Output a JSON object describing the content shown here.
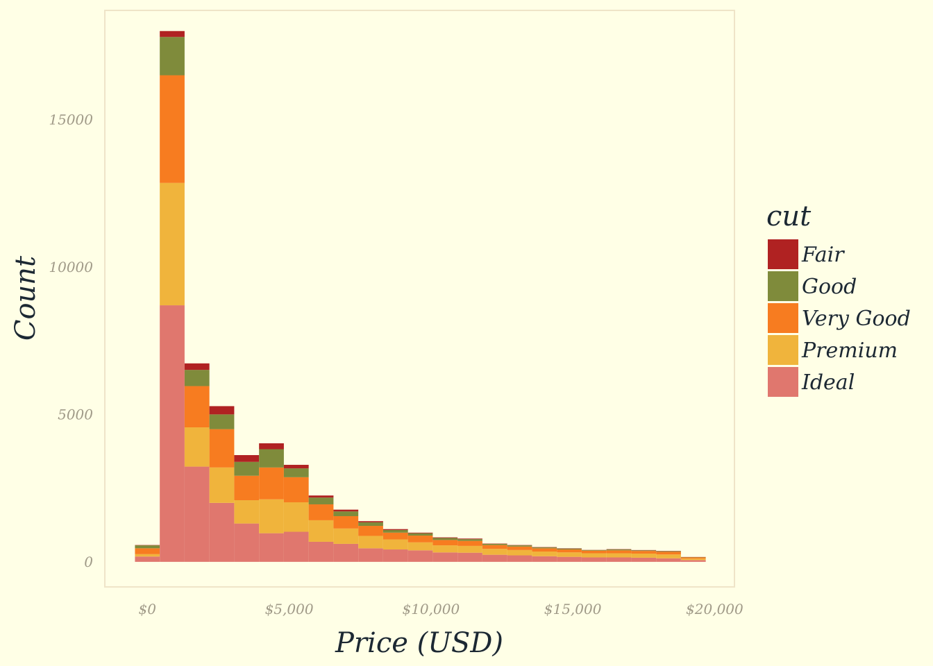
{
  "chart_data": {
    "type": "bar",
    "stacked": true,
    "xlabel": "Price (USD)",
    "ylabel": "Count",
    "xlim": [
      -1500,
      20700
    ],
    "ylim": [
      -850,
      18700
    ],
    "x_ticks": [
      {
        "value": 0,
        "label": "$0"
      },
      {
        "value": 5000,
        "label": "$5,000"
      },
      {
        "value": 10000,
        "label": "$10,000"
      },
      {
        "value": 15000,
        "label": "$15,000"
      },
      {
        "value": 20000,
        "label": "$20,000"
      }
    ],
    "y_ticks": [
      {
        "value": 0,
        "label": "0"
      },
      {
        "value": 5000,
        "label": "5000"
      },
      {
        "value": 10000,
        "label": "10000"
      },
      {
        "value": 15000,
        "label": "15000"
      }
    ],
    "grid": false,
    "legend": {
      "title": "cut",
      "position": "right"
    },
    "bin_edges": [
      -437.5,
      437.5,
      1312.5,
      2187.5,
      3062.5,
      3937.5,
      4812.5,
      5687.5,
      6562.5,
      7437.5,
      8312.5,
      9187.5,
      10062.5,
      10937.5,
      11812.5,
      12687.5,
      13562.5,
      14437.5,
      15312.5,
      16187.5,
      17062.5,
      17937.5,
      18812.5,
      19687.5
    ],
    "series": [
      {
        "name": "Ideal",
        "color": "#E0776E",
        "values": [
          180,
          8700,
          3230,
          2000,
          1300,
          970,
          1020,
          680,
          610,
          460,
          420,
          390,
          320,
          310,
          240,
          220,
          190,
          170,
          150,
          150,
          140,
          120,
          60
        ]
      },
      {
        "name": "Premium",
        "color": "#F0B43C",
        "values": [
          80,
          4150,
          1330,
          1200,
          790,
          1150,
          1000,
          730,
          520,
          420,
          340,
          270,
          240,
          230,
          200,
          180,
          160,
          150,
          140,
          140,
          140,
          130,
          50
        ]
      },
      {
        "name": "Very Good",
        "color": "#F77C20",
        "values": [
          200,
          3650,
          1400,
          1300,
          830,
          1080,
          850,
          540,
          420,
          340,
          230,
          230,
          180,
          170,
          130,
          120,
          110,
          100,
          90,
          100,
          90,
          90,
          40
        ]
      },
      {
        "name": "Good",
        "color": "#7F8B3B",
        "values": [
          100,
          1300,
          550,
          500,
          470,
          620,
          300,
          230,
          160,
          120,
          90,
          80,
          70,
          60,
          40,
          40,
          30,
          30,
          20,
          30,
          20,
          20,
          10
        ]
      },
      {
        "name": "Fair",
        "color": "#B02222",
        "values": [
          10,
          200,
          220,
          280,
          230,
          200,
          120,
          70,
          60,
          40,
          30,
          20,
          20,
          20,
          10,
          10,
          10,
          10,
          5,
          10,
          10,
          10,
          5
        ]
      }
    ]
  },
  "colors": {
    "background": "#FFFFE6",
    "panel_border": "#EFE4C8",
    "tick_text": "#A09A88",
    "title_text": "#1C2833"
  }
}
